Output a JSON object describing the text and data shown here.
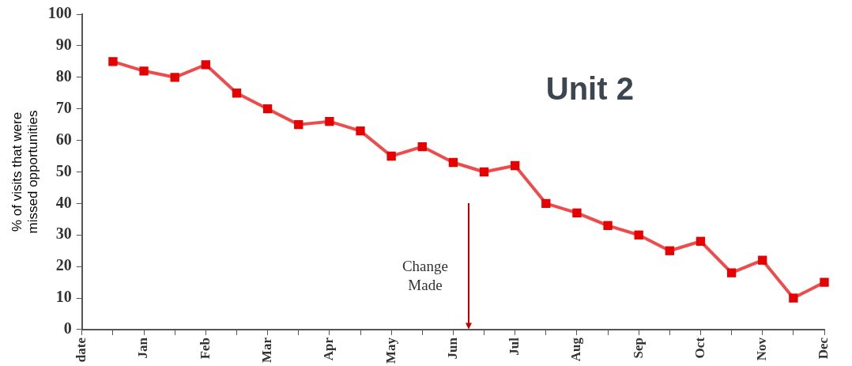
{
  "chart_data": {
    "type": "line",
    "title": "Unit 2",
    "ylabel": "% of visits that were\nmissed opportunities",
    "categories": [
      "date",
      null,
      "Jan",
      null,
      "Feb",
      null,
      "Mar",
      null,
      "Apr",
      null,
      "May",
      null,
      "Jun",
      null,
      "Jul",
      null,
      "Aug",
      null,
      "Sep",
      null,
      "Oct",
      null,
      "Nov",
      null,
      "Dec"
    ],
    "series": [
      {
        "color": "#e60000",
        "values": [
          null,
          85,
          82,
          80,
          84,
          75,
          70,
          65,
          66,
          63,
          55,
          58,
          53,
          50,
          52,
          40,
          37,
          33,
          30,
          25,
          28,
          18,
          22,
          10,
          15
        ]
      }
    ],
    "ylim": [
      0,
      100
    ],
    "yticks": [
      0,
      10,
      20,
      30,
      40,
      50,
      60,
      70,
      80,
      90,
      100
    ],
    "grid": false,
    "legend": false,
    "marker": "square",
    "line_style": "solid",
    "annotations": [
      "Change Made"
    ]
  }
}
